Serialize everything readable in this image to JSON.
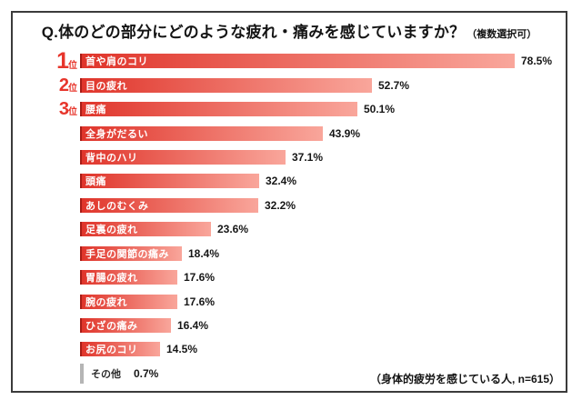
{
  "title": {
    "question": "Q.体のどの部分にどのような疲れ・痛みを感じていますか？",
    "note": "（複数選択可）"
  },
  "footer": {
    "note": "（身体的疲労を感じている人, n=615）"
  },
  "colors": {
    "bar_edge": "#a81d17",
    "bar_start": "#e0352b",
    "bar_end": "#f9a69b",
    "rank_red": "#e7352b",
    "other_bar_gray": "#b5b5b5",
    "frame_border": "#3b3b3b",
    "text_dark": "#161616"
  },
  "chart_data": {
    "type": "bar",
    "orientation": "horizontal",
    "title": "Q.体のどの部分にどのような疲れ・痛みを感じていますか？（複数選択可）",
    "unit": "%",
    "xlim": [
      0,
      100
    ],
    "max_value": 78.5,
    "rank_suffix": "位",
    "source_note": "（身体的疲労を感じている人, n=615）",
    "items": [
      {
        "rank": "1",
        "label": "首や肩のコリ",
        "value": 78.5,
        "display": "78.5%"
      },
      {
        "rank": "2",
        "label": "目の疲れ",
        "value": 52.7,
        "display": "52.7%"
      },
      {
        "rank": "3",
        "label": "腰痛",
        "value": 50.1,
        "display": "50.1%"
      },
      {
        "rank": "",
        "label": "全身がだるい",
        "value": 43.9,
        "display": "43.9%"
      },
      {
        "rank": "",
        "label": "背中のハリ",
        "value": 37.1,
        "display": "37.1%"
      },
      {
        "rank": "",
        "label": "頭痛",
        "value": 32.4,
        "display": "32.4%"
      },
      {
        "rank": "",
        "label": "あしのむくみ",
        "value": 32.2,
        "display": "32.2%"
      },
      {
        "rank": "",
        "label": "足裏の疲れ",
        "value": 23.6,
        "display": "23.6%"
      },
      {
        "rank": "",
        "label": "手足の関節の痛み",
        "value": 18.4,
        "display": "18.4%"
      },
      {
        "rank": "",
        "label": "胃腸の疲れ",
        "value": 17.6,
        "display": "17.6%"
      },
      {
        "rank": "",
        "label": "腕の疲れ",
        "value": 17.6,
        "display": "17.6%"
      },
      {
        "rank": "",
        "label": "ひざの痛み",
        "value": 16.4,
        "display": "16.4%"
      },
      {
        "rank": "",
        "label": "お尻のコリ",
        "value": 14.5,
        "display": "14.5%"
      },
      {
        "rank": "",
        "label": "その他",
        "value": 0.7,
        "display": "0.7%",
        "other": true
      }
    ]
  }
}
